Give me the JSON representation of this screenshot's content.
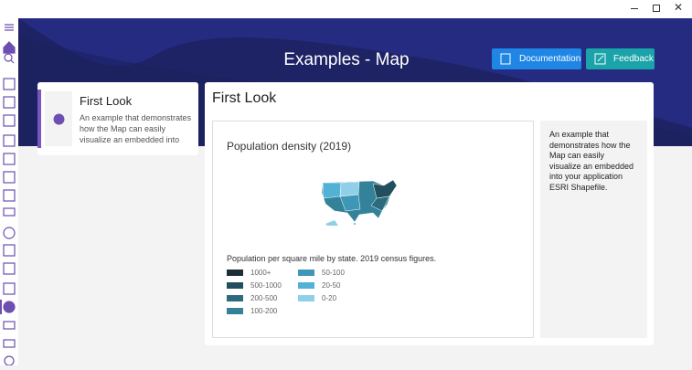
{
  "header": {
    "title": "Examples - Map",
    "buttons": [
      "Documentation",
      "Feedback"
    ]
  },
  "card": {
    "title": "First Look",
    "description": "An example that demonstrates how the Map can easily visualize an embedded into"
  },
  "panel": {
    "title": "First Look",
    "map": {
      "title": "Population density (2019)",
      "caption": "Population per square mile by state. 2019 census figures.",
      "legend": [
        {
          "label": "1000+",
          "color": "#1c2d36"
        },
        {
          "label": "500-1000",
          "color": "#224f5e"
        },
        {
          "label": "200-500",
          "color": "#2b6b7d"
        },
        {
          "label": "100-200",
          "color": "#34829a"
        },
        {
          "label": "50-100",
          "color": "#3f97b8"
        },
        {
          "label": "20-50",
          "color": "#52b2d6"
        },
        {
          "label": "0-20",
          "color": "#8fd0e8"
        }
      ]
    },
    "description": "An example that demonstrates how the Map can easily visualize an embedded into your application ESRI Shapefile."
  }
}
